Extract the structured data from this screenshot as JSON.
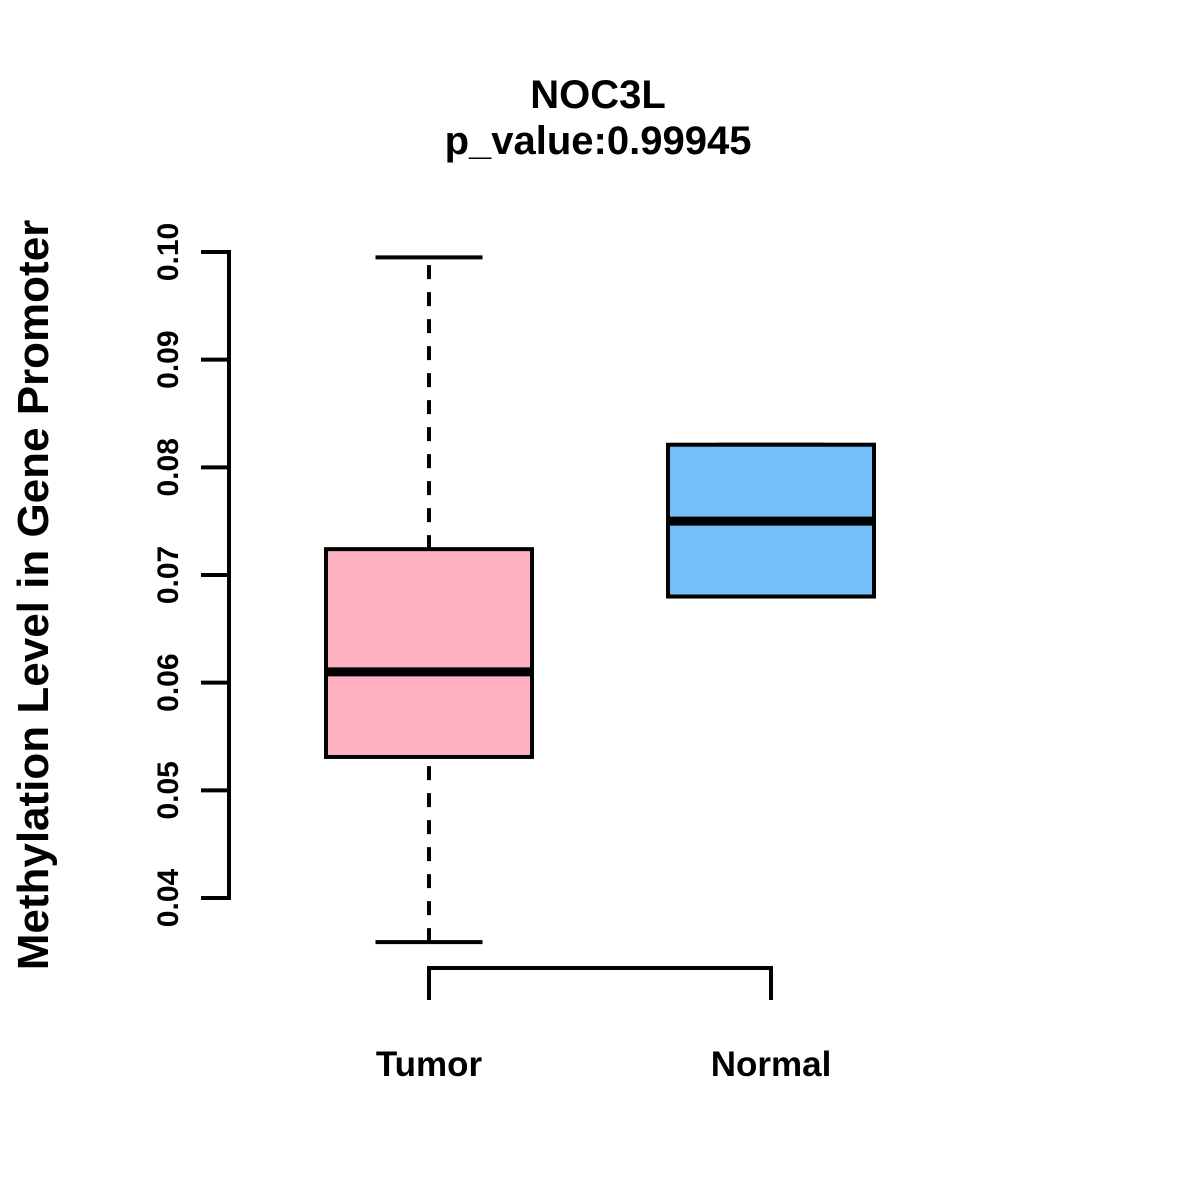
{
  "chart_data": {
    "type": "boxplot",
    "title": "NOC3L",
    "subtitle": "p_value:0.99945",
    "xlabel": "",
    "ylabel": "Methylation Level in Gene Promoter",
    "categories": [
      "Tumor",
      "Normal"
    ],
    "y_ticks": [
      0.04,
      0.05,
      0.06,
      0.07,
      0.08,
      0.09,
      0.1
    ],
    "y_tick_labels": [
      "0.04",
      "0.05",
      "0.06",
      "0.07",
      "0.08",
      "0.09",
      "0.10"
    ],
    "ylim": [
      0.034,
      0.102
    ],
    "grid": false,
    "legend_position": "none",
    "groups": [
      {
        "name": "Tumor",
        "fill_color": "#FFB1C1",
        "whisker_style": "dashed",
        "stats": {
          "whisker_low": 0.0359,
          "q1": 0.0531,
          "median": 0.061,
          "q3": 0.0724,
          "whisker_high": 0.0995
        }
      },
      {
        "name": "Normal",
        "fill_color": "#74BFF7",
        "whisker_style": "dashed",
        "stats": {
          "whisker_low": 0.068,
          "q1": 0.068,
          "median": 0.075,
          "q3": 0.0821,
          "whisker_high": 0.0821
        }
      }
    ],
    "colors": {
      "axis": "#000000",
      "box_border": "#000000",
      "median": "#000000",
      "text": "#000000",
      "background": "#FFFFFF"
    }
  }
}
